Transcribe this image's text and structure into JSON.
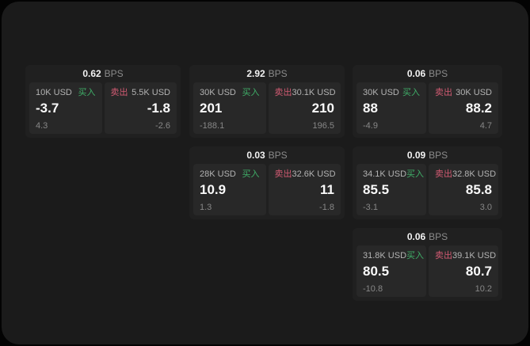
{
  "labels": {
    "bps": "BPS",
    "buy": "买入",
    "sell": "卖出"
  },
  "colors": {
    "buy_green": "#3fae68",
    "sell_red": "#d15a72",
    "page_background": "#1b1b1b",
    "card_background": "#202020",
    "panel_background": "#282828"
  },
  "cards": [
    {
      "bps": "0.62",
      "buy": {
        "amount": "10K USD",
        "value": "-3.7",
        "sub": "4.3"
      },
      "sell": {
        "amount": "5.5K USD",
        "value": "-1.8",
        "sub": "-2.6"
      }
    },
    {
      "bps": "2.92",
      "buy": {
        "amount": "30K USD",
        "value": "201",
        "sub": "-188.1"
      },
      "sell": {
        "amount": "30.1K USD",
        "value": "210",
        "sub": "196.5"
      }
    },
    {
      "bps": "0.06",
      "buy": {
        "amount": "30K USD",
        "value": "88",
        "sub": "-4.9"
      },
      "sell": {
        "amount": "30K USD",
        "value": "88.2",
        "sub": "4.7"
      }
    },
    {
      "bps": "0.03",
      "buy": {
        "amount": "28K USD",
        "value": "10.9",
        "sub": "1.3"
      },
      "sell": {
        "amount": "32.6K USD",
        "value": "11",
        "sub": "-1.8"
      }
    },
    {
      "bps": "0.09",
      "buy": {
        "amount": "34.1K USD",
        "value": "85.5",
        "sub": "-3.1"
      },
      "sell": {
        "amount": "32.8K USD",
        "value": "85.8",
        "sub": "3.0"
      }
    },
    {
      "bps": "0.06",
      "buy": {
        "amount": "31.8K USD",
        "value": "80.5",
        "sub": "-10.8"
      },
      "sell": {
        "amount": "39.1K USD",
        "value": "80.7",
        "sub": "10.2"
      }
    }
  ]
}
